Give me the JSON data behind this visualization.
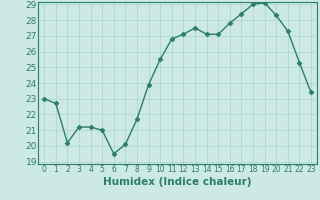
{
  "x": [
    0,
    1,
    2,
    3,
    4,
    5,
    6,
    7,
    8,
    9,
    10,
    11,
    12,
    13,
    14,
    15,
    16,
    17,
    18,
    19,
    20,
    21,
    22,
    23
  ],
  "y": [
    23.0,
    22.7,
    20.2,
    21.2,
    21.2,
    21.0,
    19.5,
    20.1,
    21.7,
    23.9,
    25.5,
    26.8,
    27.1,
    27.5,
    27.1,
    27.1,
    27.8,
    28.4,
    29.0,
    29.1,
    28.3,
    27.3,
    25.3,
    23.4
  ],
  "ylim_min": 19,
  "ylim_max": 29,
  "xlim_min": -0.5,
  "xlim_max": 23.5,
  "yticks": [
    19,
    20,
    21,
    22,
    23,
    24,
    25,
    26,
    27,
    28,
    29
  ],
  "xticks": [
    0,
    1,
    2,
    3,
    4,
    5,
    6,
    7,
    8,
    9,
    10,
    11,
    12,
    13,
    14,
    15,
    16,
    17,
    18,
    19,
    20,
    21,
    22,
    23
  ],
  "xlabel": "Humidex (Indice chaleur)",
  "line_color": "#2d7d6b",
  "marker": "D",
  "marker_size": 2.5,
  "line_width": 1.0,
  "background_color": "#cce9e4",
  "grid_color": "#b0d8d0",
  "border_color": "#2d7d6b",
  "tick_color": "#2d7d6b",
  "label_color": "#2d7d6b",
  "xlabel_fontsize": 7.5,
  "ytick_fontsize": 6.5,
  "xtick_fontsize": 5.5
}
